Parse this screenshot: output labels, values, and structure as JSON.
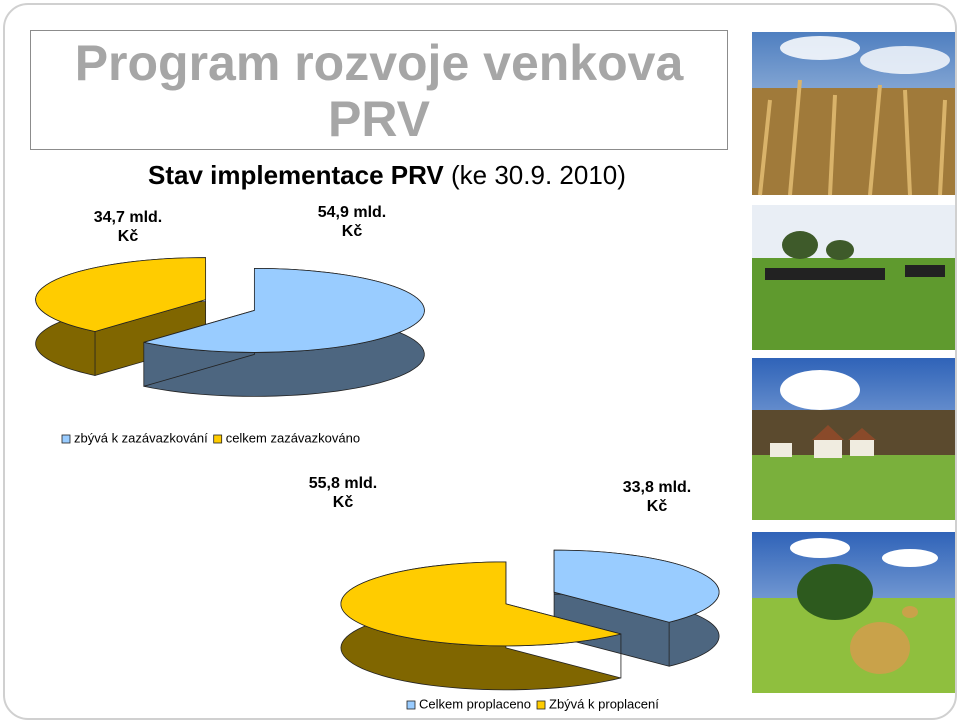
{
  "slide": {
    "title": "Program rozvoje venkova PRV",
    "subtitle": [
      "Stav implementace PRV",
      "(ke 30.9. 2010)"
    ]
  },
  "chart_data": [
    {
      "type": "pie",
      "categories": [
        "zbývá k zazávazkování",
        "celkem zazávazkováno"
      ],
      "values": [
        54.9,
        34.7
      ],
      "value_labels": [
        "54,9 mld. Kč",
        "34,7 mld. Kč"
      ],
      "colors": [
        "#99ccff",
        "#ffcc00"
      ],
      "legend": "bottom"
    },
    {
      "type": "pie",
      "categories": [
        "Celkem proplaceno",
        "Zbývá k proplacení"
      ],
      "values": [
        33.8,
        55.8
      ],
      "value_labels": [
        "33,8 mld. Kč",
        "55,8 mld. Kč"
      ],
      "colors": [
        "#99ccff",
        "#ffcc00"
      ],
      "legend": "bottom"
    }
  ]
}
